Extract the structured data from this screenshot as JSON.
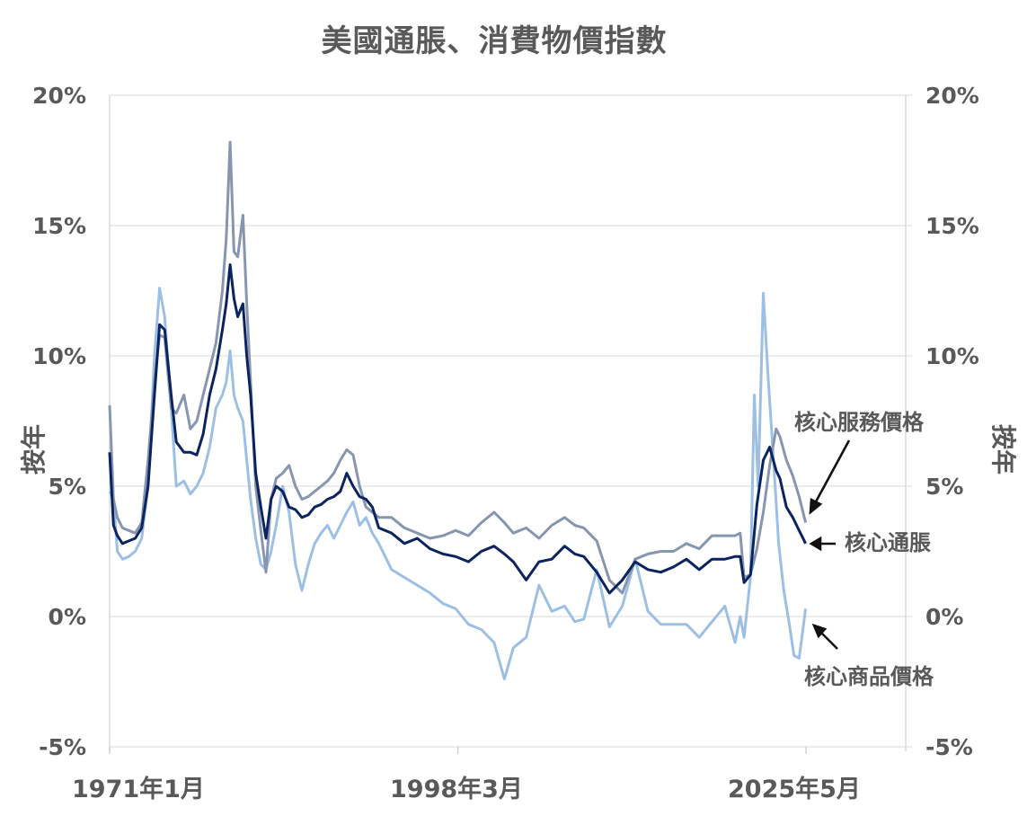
{
  "title": "美國通脹、消費物價指數",
  "axes": {
    "y_title_left": "按年",
    "y_title_right": "按年",
    "y_ticks": [
      "20%",
      "15%",
      "10%",
      "5%",
      "0%",
      "-5%"
    ],
    "x_ticks": [
      "1971年1月",
      "1998年3月",
      "2025年5月"
    ]
  },
  "annotations": {
    "services": "核心服務價格",
    "core": "核心通脹",
    "goods": "核心商品價格"
  },
  "colors": {
    "services": "#8796b0",
    "core": "#0b2460",
    "goods": "#9dbfe3",
    "grid": "#d9d9d9",
    "text": "#595959"
  },
  "chart_data": {
    "type": "line",
    "title": "美國通脹、消費物價指數",
    "xlabel": "",
    "ylabel": "按年",
    "ylabel_right": "按年",
    "ylim": [
      -5,
      20
    ],
    "xlim": [
      1971.0,
      2033.0
    ],
    "x_tick_labels": [
      "1971年1月",
      "1998年3月",
      "2025年5月"
    ],
    "x_tick_positions": [
      1971.0,
      1998.17,
      2025.33
    ],
    "y_tick_labels": [
      "-5%",
      "0%",
      "5%",
      "10%",
      "15%",
      "20%"
    ],
    "grid": true,
    "legend": "inline annotations with arrows (right side)",
    "series": [
      {
        "name": "核心服務價格",
        "x": [
          1971.0,
          1971.3,
          1971.6,
          1972.0,
          1972.5,
          1973.0,
          1973.5,
          1974.0,
          1974.5,
          1974.9,
          1975.3,
          1975.8,
          1976.2,
          1976.8,
          1977.3,
          1977.8,
          1978.3,
          1978.8,
          1979.3,
          1979.8,
          1980.1,
          1980.4,
          1980.7,
          1981.0,
          1981.4,
          1981.7,
          1982.0,
          1982.4,
          1982.8,
          1983.2,
          1983.6,
          1984.0,
          1984.5,
          1985.0,
          1985.5,
          1986.0,
          1986.5,
          1987.0,
          1987.5,
          1988.0,
          1988.5,
          1989.0,
          1989.5,
          1990.0,
          1990.5,
          1991.0,
          1991.5,
          1992.0,
          1993.0,
          1994.0,
          1995.0,
          1996.0,
          1997.0,
          1998.0,
          1999.0,
          2000.0,
          2001.0,
          2001.8,
          2002.5,
          2003.5,
          2004.5,
          2005.5,
          2006.5,
          2007.3,
          2008.0,
          2009.0,
          2010.0,
          2011.0,
          2012.0,
          2013.0,
          2014.0,
          2015.0,
          2016.0,
          2017.0,
          2018.0,
          2019.0,
          2019.8,
          2020.2,
          2020.5,
          2021.0,
          2021.5,
          2022.0,
          2022.5,
          2023.0,
          2023.3,
          2023.8,
          2024.3,
          2024.8,
          2025.3
        ],
        "values": [
          8.1,
          4.5,
          3.8,
          3.4,
          3.3,
          3.2,
          3.6,
          6.0,
          9.0,
          10.8,
          10.7,
          8.0,
          7.8,
          8.5,
          7.2,
          7.5,
          8.5,
          9.5,
          10.5,
          12.5,
          14.5,
          18.2,
          14.0,
          13.8,
          15.4,
          12.0,
          9.0,
          5.0,
          3.3,
          1.7,
          4.5,
          5.3,
          5.5,
          5.8,
          5.0,
          4.5,
          4.6,
          4.8,
          5.0,
          5.2,
          5.5,
          6.0,
          6.4,
          6.2,
          5.0,
          4.2,
          4.0,
          3.8,
          3.8,
          3.4,
          3.2,
          3.0,
          3.1,
          3.3,
          3.1,
          3.6,
          4.0,
          3.6,
          3.2,
          3.4,
          3.0,
          3.5,
          3.8,
          3.5,
          3.4,
          2.9,
          1.4,
          0.9,
          2.2,
          2.4,
          2.5,
          2.5,
          2.8,
          2.6,
          3.1,
          3.1,
          3.1,
          3.2,
          1.5,
          1.6,
          2.6,
          4.0,
          5.8,
          7.2,
          6.9,
          6.0,
          5.4,
          4.6,
          3.6
        ]
      },
      {
        "name": "核心通脹",
        "x": [
          1971.0,
          1971.3,
          1971.6,
          1972.0,
          1972.5,
          1973.0,
          1973.5,
          1974.0,
          1974.5,
          1974.9,
          1975.3,
          1975.8,
          1976.2,
          1976.8,
          1977.3,
          1977.8,
          1978.3,
          1978.8,
          1979.3,
          1979.8,
          1980.1,
          1980.4,
          1980.7,
          1981.0,
          1981.4,
          1981.7,
          1982.0,
          1982.4,
          1982.8,
          1983.2,
          1983.6,
          1984.0,
          1984.5,
          1985.0,
          1985.5,
          1986.0,
          1986.5,
          1987.0,
          1987.5,
          1988.0,
          1988.5,
          1989.0,
          1989.5,
          1990.0,
          1990.5,
          1991.0,
          1991.5,
          1992.0,
          1993.0,
          1994.0,
          1995.0,
          1996.0,
          1997.0,
          1998.0,
          1999.0,
          2000.0,
          2001.0,
          2001.8,
          2002.5,
          2003.5,
          2004.5,
          2005.5,
          2006.5,
          2007.3,
          2008.0,
          2009.0,
          2010.0,
          2011.0,
          2012.0,
          2013.0,
          2014.0,
          2015.0,
          2016.0,
          2017.0,
          2018.0,
          2019.0,
          2019.8,
          2020.2,
          2020.5,
          2021.0,
          2021.5,
          2022.0,
          2022.5,
          2023.0,
          2023.3,
          2023.8,
          2024.3,
          2024.8,
          2025.3
        ],
        "values": [
          6.3,
          3.5,
          3.1,
          2.8,
          2.9,
          3.0,
          3.4,
          5.0,
          8.5,
          11.2,
          11.0,
          8.5,
          6.7,
          6.3,
          6.3,
          6.2,
          7.0,
          8.5,
          9.5,
          11.0,
          12.0,
          13.5,
          12.2,
          11.5,
          12.0,
          10.0,
          8.5,
          5.5,
          4.2,
          3.0,
          4.5,
          5.0,
          4.8,
          4.2,
          4.1,
          3.8,
          3.9,
          4.2,
          4.3,
          4.5,
          4.6,
          4.8,
          5.5,
          5.0,
          4.6,
          4.5,
          4.2,
          3.4,
          3.2,
          2.8,
          3.0,
          2.6,
          2.4,
          2.3,
          2.1,
          2.5,
          2.7,
          2.4,
          2.1,
          1.4,
          2.1,
          2.2,
          2.7,
          2.4,
          2.3,
          1.7,
          0.9,
          1.4,
          2.1,
          1.8,
          1.7,
          1.9,
          2.2,
          1.8,
          2.2,
          2.2,
          2.3,
          2.3,
          1.3,
          1.6,
          4.3,
          6.0,
          6.5,
          5.6,
          5.3,
          4.2,
          3.8,
          3.3,
          2.8
        ]
      },
      {
        "name": "核心商品價格",
        "x": [
          1971.0,
          1971.3,
          1971.6,
          1972.0,
          1972.5,
          1973.0,
          1973.5,
          1974.0,
          1974.5,
          1974.9,
          1975.3,
          1975.8,
          1976.2,
          1976.8,
          1977.3,
          1977.8,
          1978.3,
          1978.8,
          1979.3,
          1979.8,
          1980.1,
          1980.4,
          1980.7,
          1981.0,
          1981.4,
          1981.7,
          1982.0,
          1982.4,
          1982.8,
          1983.2,
          1983.6,
          1984.0,
          1984.5,
          1985.0,
          1985.5,
          1986.0,
          1986.5,
          1987.0,
          1987.5,
          1988.0,
          1988.5,
          1989.0,
          1989.5,
          1990.0,
          1990.5,
          1991.0,
          1991.5,
          1992.0,
          1993.0,
          1994.0,
          1995.0,
          1996.0,
          1997.0,
          1998.0,
          1999.0,
          2000.0,
          2001.0,
          2001.8,
          2002.5,
          2003.5,
          2004.5,
          2005.5,
          2006.5,
          2007.3,
          2008.0,
          2009.0,
          2010.0,
          2011.0,
          2012.0,
          2013.0,
          2014.0,
          2015.0,
          2016.0,
          2017.0,
          2018.0,
          2019.0,
          2019.8,
          2020.2,
          2020.5,
          2021.0,
          2021.3,
          2021.6,
          2022.0,
          2022.4,
          2022.8,
          2023.2,
          2023.6,
          2024.0,
          2024.4,
          2024.8,
          2025.3
        ],
        "values": [
          4.8,
          4.5,
          2.5,
          2.2,
          2.3,
          2.5,
          3.0,
          5.0,
          10.0,
          12.6,
          11.5,
          8.0,
          5.0,
          5.2,
          4.7,
          5.0,
          5.5,
          6.5,
          8.0,
          8.5,
          9.0,
          10.2,
          8.5,
          8.0,
          7.5,
          6.0,
          4.5,
          3.0,
          2.0,
          1.8,
          2.5,
          3.5,
          5.0,
          4.0,
          2.0,
          1.0,
          2.0,
          2.8,
          3.2,
          3.5,
          3.0,
          3.5,
          4.0,
          4.4,
          3.5,
          3.8,
          3.2,
          2.8,
          1.8,
          1.5,
          1.2,
          0.9,
          0.5,
          0.3,
          -0.3,
          -0.5,
          -1.0,
          -2.4,
          -1.2,
          -0.8,
          1.2,
          0.2,
          0.4,
          -0.2,
          -0.1,
          1.8,
          -0.4,
          0.4,
          2.2,
          0.2,
          -0.3,
          -0.3,
          -0.3,
          -0.8,
          -0.2,
          0.4,
          -1.0,
          0.0,
          -0.8,
          1.5,
          8.5,
          5.0,
          12.4,
          9.0,
          6.0,
          2.8,
          1.0,
          -0.2,
          -1.5,
          -1.6,
          0.3
        ]
      }
    ],
    "annotations": [
      {
        "text": "核心服務價格",
        "points_to": "核心服務價格 line end (2025年5月, ~3.6%)"
      },
      {
        "text": "核心通脹",
        "points_to": "核心通脹 line end (2025年5月, ~2.8%)"
      },
      {
        "text": "核心商品價格",
        "points_to": "核心商品價格 line end (2025年5月, ~0.3%)"
      }
    ]
  }
}
